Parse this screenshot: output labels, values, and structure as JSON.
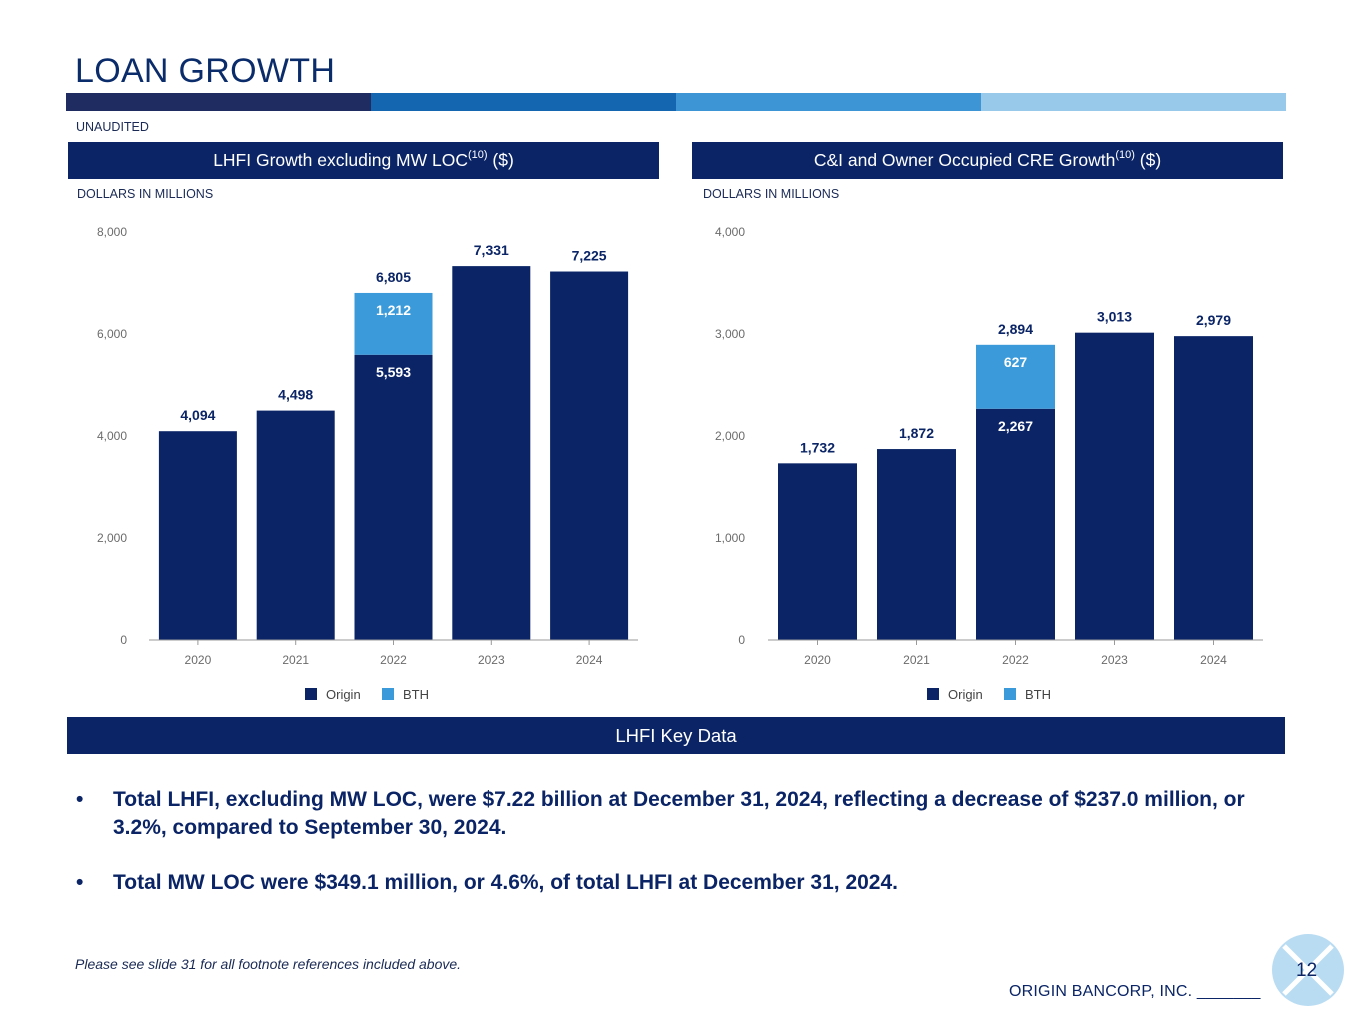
{
  "title": "LOAN GROWTH",
  "stripe_colors": [
    "#1f2c61",
    "#1566b0",
    "#3d95d5",
    "#98c9eb"
  ],
  "unaudited": "UNAUDITED",
  "units_label": "DOLLARS IN MILLIONS",
  "colors": {
    "origin": "#0a2466",
    "bth": "#3b9ad9",
    "header_bg": "#0a2466"
  },
  "left_panel": {
    "title": "LHFI Growth excluding MW LOC",
    "sup": "(10)",
    "suffix": " ($)"
  },
  "right_panel": {
    "title": "C&I and Owner Occupied CRE Growth",
    "sup": "(10)",
    "suffix": " ($)"
  },
  "chart_data": [
    {
      "type": "bar",
      "stacked": true,
      "title": "LHFI Growth excluding MW LOC(10) ($)",
      "ylabel": "DOLLARS IN MILLIONS",
      "categories": [
        "2020",
        "2021",
        "2022",
        "2023",
        "2024"
      ],
      "ylim": [
        0,
        8000
      ],
      "yticks": [
        0,
        2000,
        4000,
        6000,
        8000
      ],
      "ytick_labels": [
        "0",
        "2,000",
        "4,000",
        "6,000",
        "8,000"
      ],
      "series": [
        {
          "name": "Origin",
          "values": [
            4094,
            4498,
            5593,
            7331,
            7225
          ]
        },
        {
          "name": "BTH",
          "values": [
            0,
            0,
            1212,
            0,
            0
          ]
        }
      ],
      "totals": [
        4094,
        4498,
        6805,
        7331,
        7225
      ],
      "total_labels": [
        "4,094",
        "4,498",
        "6,805",
        "7,331",
        "7,225"
      ],
      "segment_labels": [
        {
          "category": "2022",
          "series": "Origin",
          "label": "5,593"
        },
        {
          "category": "2022",
          "series": "BTH",
          "label": "1,212"
        }
      ],
      "legend": [
        "Origin",
        "BTH"
      ],
      "legend_position": "bottom",
      "grid": false
    },
    {
      "type": "bar",
      "stacked": true,
      "title": "C&I and Owner Occupied CRE Growth(10) ($)",
      "ylabel": "DOLLARS IN MILLIONS",
      "categories": [
        "2020",
        "2021",
        "2022",
        "2023",
        "2024"
      ],
      "ylim": [
        0,
        4000
      ],
      "yticks": [
        0,
        1000,
        2000,
        3000,
        4000
      ],
      "ytick_labels": [
        "0",
        "1,000",
        "2,000",
        "3,000",
        "4,000"
      ],
      "series": [
        {
          "name": "Origin",
          "values": [
            1732,
            1872,
            2267,
            3013,
            2979
          ]
        },
        {
          "name": "BTH",
          "values": [
            0,
            0,
            627,
            0,
            0
          ]
        }
      ],
      "totals": [
        1732,
        1872,
        2894,
        3013,
        2979
      ],
      "total_labels": [
        "1,732",
        "1,872",
        "2,894",
        "3,013",
        "2,979"
      ],
      "segment_labels": [
        {
          "category": "2022",
          "series": "Origin",
          "label": "2,267"
        },
        {
          "category": "2022",
          "series": "BTH",
          "label": "627"
        }
      ],
      "legend": [
        "Origin",
        "BTH"
      ],
      "legend_position": "bottom",
      "grid": false
    }
  ],
  "key_data_header": "LHFI Key Data",
  "bullet_char": "•",
  "bullets": [
    "Total LHFI, excluding MW LOC, were $7.22 billion at December 31, 2024, reflecting a decrease of $237.0 million, or 3.2%, compared to September 30, 2024.",
    "Total MW LOC were $349.1 million, or 4.6%, of total LHFI at December 31, 2024."
  ],
  "footnote": "Please see slide 31 for all footnote references included above.",
  "company": "ORIGIN BANCORP, INC. _______",
  "page_number": "12"
}
